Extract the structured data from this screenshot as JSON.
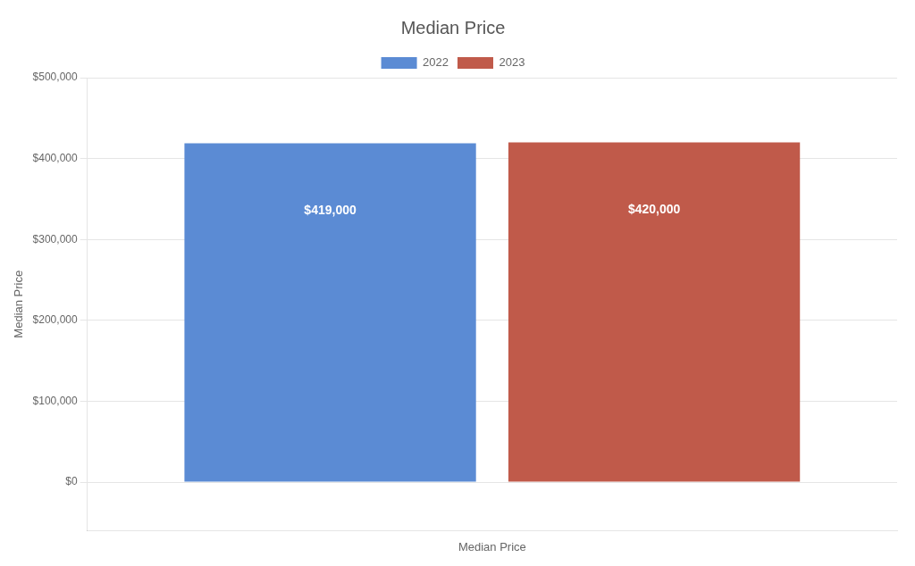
{
  "chart_data": {
    "type": "bar",
    "title": "Median Price",
    "categories": [
      "Median Price"
    ],
    "series": [
      {
        "name": "2022",
        "color": "#5B8BD4",
        "values": [
          419000
        ],
        "value_labels": [
          "$419,000"
        ]
      },
      {
        "name": "2023",
        "color": "#C05A4A",
        "values": [
          420000
        ],
        "value_labels": [
          "$420,000"
        ]
      }
    ],
    "y_label": "Median Price",
    "ylim": [
      -60000,
      500000
    ],
    "yticks": [
      {
        "value": 0,
        "label": "$0"
      },
      {
        "value": 100000,
        "label": "$100,000"
      },
      {
        "value": 200000,
        "label": "$200,000"
      },
      {
        "value": 300000,
        "label": "$300,000"
      },
      {
        "value": 400000,
        "label": "$400,000"
      },
      {
        "value": 500000,
        "label": "$500,000"
      }
    ],
    "grid": true,
    "legend": "top",
    "data_labels": true
  }
}
